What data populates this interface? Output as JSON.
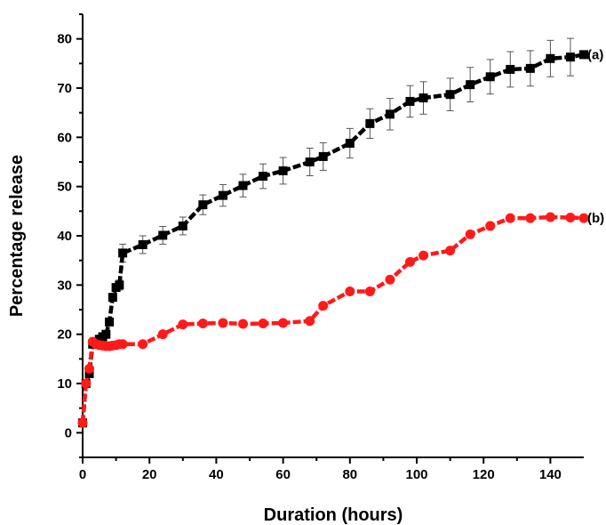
{
  "chart_data": {
    "type": "line",
    "xlabel": "Duration (hours)",
    "ylabel": "Percentage release",
    "xlim": [
      0,
      150
    ],
    "ylim": [
      -5,
      85
    ],
    "xticks": [
      0,
      20,
      40,
      60,
      80,
      100,
      120,
      140
    ],
    "yticks": [
      0,
      10,
      20,
      30,
      40,
      50,
      60,
      70,
      80
    ],
    "grid": false,
    "series": [
      {
        "name": "(a)",
        "color": "#000000",
        "marker": "square",
        "x": [
          0,
          1,
          2,
          3,
          4,
          5,
          6,
          7,
          8,
          9,
          10,
          11,
          12,
          18,
          24,
          30,
          36,
          42,
          48,
          54,
          60,
          68,
          72,
          80,
          86,
          92,
          98,
          102,
          110,
          116,
          122,
          128,
          134,
          140,
          146,
          150
        ],
        "y": [
          2,
          10,
          12,
          18,
          18.5,
          19,
          19.5,
          20,
          22.5,
          27.5,
          29.5,
          30,
          36.5,
          38.2,
          40.1,
          42,
          46.3,
          48.2,
          50.2,
          52.1,
          53.2,
          55,
          56.1,
          58.8,
          62.8,
          64.7,
          67.3,
          68,
          68.7,
          70.7,
          72.3,
          73.8,
          74,
          76,
          76.3,
          76.8
        ],
        "error": [
          0,
          0,
          0,
          0,
          0,
          0,
          0,
          0,
          0,
          0,
          0,
          1,
          1.8,
          1.8,
          1.8,
          1.8,
          2,
          2.2,
          2.3,
          2.5,
          2.7,
          2.8,
          2.8,
          3,
          3,
          3.2,
          3.2,
          3.3,
          3.3,
          3.5,
          3.5,
          3.6,
          3.6,
          3.7,
          3.8,
          0
        ]
      },
      {
        "name": "(b)",
        "color": "#ff1a1a",
        "marker": "circle",
        "x": [
          0,
          1,
          2,
          3,
          4,
          5,
          6,
          7,
          8,
          9,
          10,
          11,
          12,
          18,
          24,
          30,
          36,
          42,
          48,
          54,
          60,
          68,
          72,
          80,
          86,
          92,
          98,
          102,
          110,
          116,
          122,
          128,
          134,
          140,
          146,
          150
        ],
        "y": [
          2,
          10,
          13,
          18.5,
          18,
          17.8,
          17.7,
          17.6,
          17.6,
          17.7,
          17.8,
          18,
          18,
          18,
          20,
          22,
          22.2,
          22.3,
          22.1,
          22.2,
          22.3,
          22.7,
          25.8,
          28.7,
          28.7,
          31.1,
          34.7,
          36,
          37,
          40.3,
          42,
          43.6,
          43.6,
          43.8,
          43.7,
          43.6
        ],
        "error": []
      }
    ],
    "annotations": [
      {
        "text": "(a)",
        "series": 0
      },
      {
        "text": "(b)",
        "series": 1
      }
    ]
  }
}
